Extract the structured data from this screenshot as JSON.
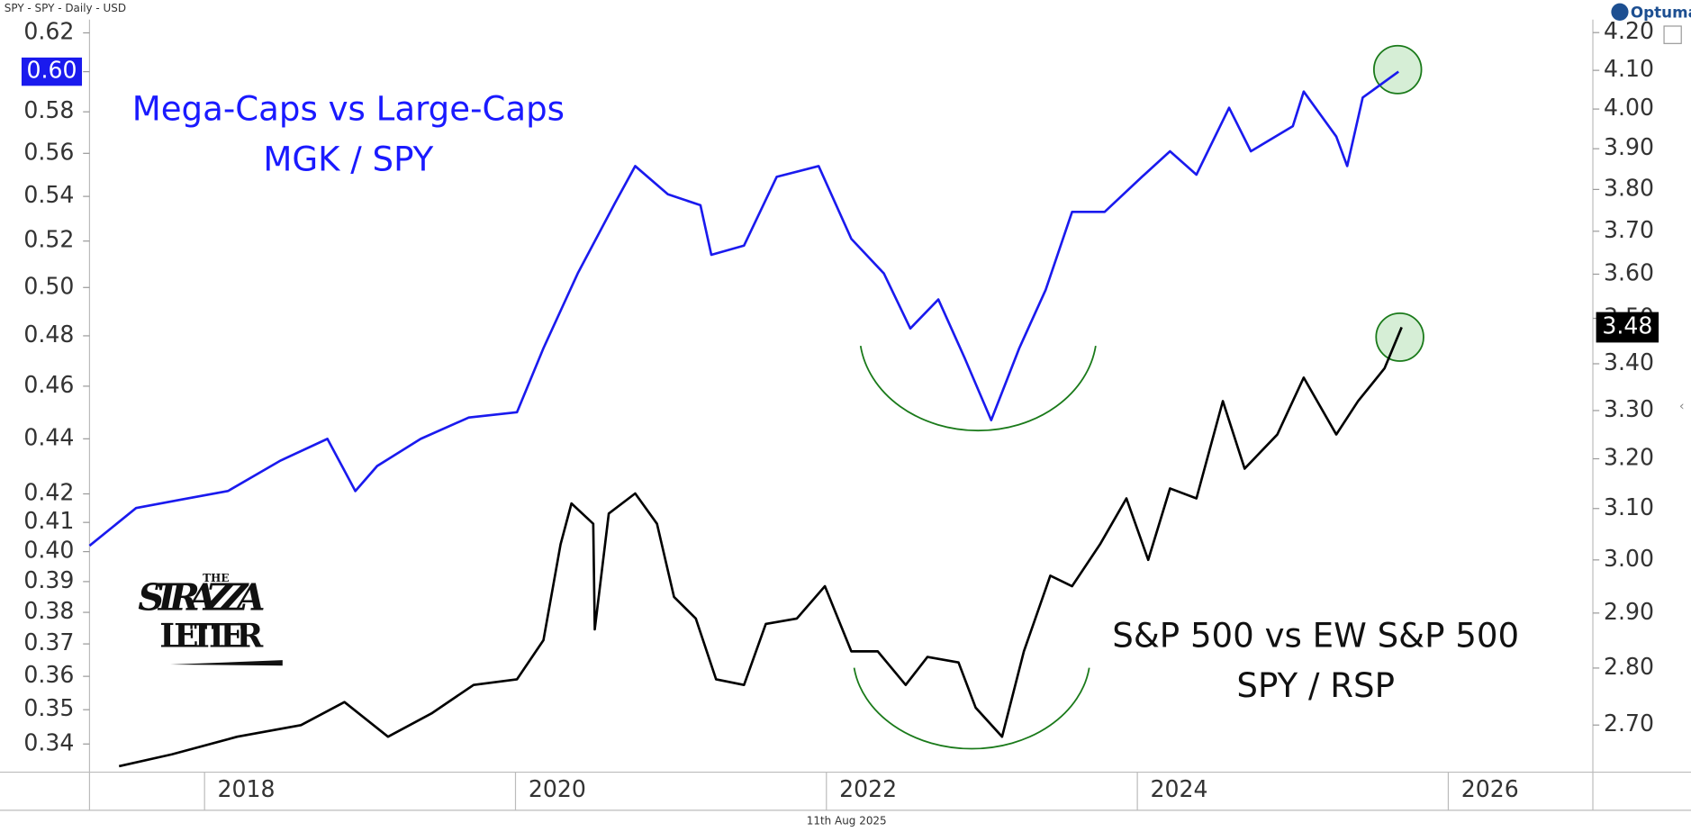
{
  "header": "SPY - SPY - Daily - USD",
  "brand": "Optuma",
  "footer": "11th Aug 2025",
  "watermark": {
    "top": "THE",
    "line1": "STRAZZA",
    "line2": "LETTER"
  },
  "chart_data": {
    "type": "line",
    "log_scale": true,
    "grid": false,
    "annotations": [
      {
        "text": "Mega-Caps vs Large-Caps",
        "color": "#1a1aff"
      },
      {
        "text": "MGK / SPY",
        "color": "#1a1aff"
      },
      {
        "text": "S&P 500 vs EW S&P 500",
        "color": "#111111"
      },
      {
        "text": "SPY / RSP",
        "color": "#111111"
      }
    ],
    "xlim": [
      2017.26,
      2026.93
    ],
    "xticks": [
      2018,
      2020,
      2022,
      2024,
      2026
    ],
    "ylim": [
      0.332,
      0.627
    ],
    "yticks": [
      0.34,
      0.35,
      0.36,
      0.37,
      0.38,
      0.39,
      {
        "value": 0.4,
        "label": "0.40"
      },
      0.41,
      0.42,
      0.44,
      0.46,
      0.48,
      {
        "value": 0.5,
        "label": "0.50"
      },
      0.52,
      0.54,
      0.56,
      0.58,
      {
        "value": 0.6,
        "label": "0.60"
      },
      0.62
    ],
    "y2lim": [
      2.62,
      4.235
    ],
    "y2ticks": [
      {
        "value": 2.7,
        "label": "2.70"
      },
      {
        "value": 2.8,
        "label": "2.80"
      },
      {
        "value": 2.9,
        "label": "2.90"
      },
      {
        "value": 3.0,
        "label": "3.00"
      },
      {
        "value": 3.1,
        "label": "3.10"
      },
      {
        "value": 3.2,
        "label": "3.20"
      },
      {
        "value": 3.3,
        "label": "3.30"
      },
      {
        "value": 3.4,
        "label": "3.40"
      },
      {
        "value": 3.5,
        "label": "3.50"
      },
      {
        "value": 3.6,
        "label": "3.60"
      },
      {
        "value": 3.7,
        "label": "3.70"
      },
      {
        "value": 3.8,
        "label": "3.80"
      },
      {
        "value": 3.9,
        "label": "3.90"
      },
      {
        "value": 4.0,
        "label": "4.00"
      },
      {
        "value": 4.1,
        "label": "4.10"
      },
      {
        "value": 4.2,
        "label": "4.20"
      }
    ],
    "series": [
      {
        "name": "MGK / SPY",
        "color": "#1a1aee",
        "axis": "y",
        "last_label": "0.60",
        "x": [
          2017.26,
          2017.56,
          2017.85,
          2018.15,
          2018.49,
          2018.79,
          2018.97,
          2019.11,
          2019.39,
          2019.7,
          2020.01,
          2020.18,
          2020.4,
          2020.64,
          2020.77,
          2020.98,
          2021.19,
          2021.26,
          2021.47,
          2021.68,
          2021.95,
          2022.16,
          2022.37,
          2022.54,
          2022.72,
          2022.89,
          2023.06,
          2023.24,
          2023.41,
          2023.58,
          2023.79,
          2024.03,
          2024.21,
          2024.38,
          2024.59,
          2024.73,
          2025.0,
          2025.07,
          2025.28,
          2025.35,
          2025.45,
          2025.68
        ],
        "values": [
          0.402,
          0.415,
          0.418,
          0.421,
          0.432,
          0.44,
          0.421,
          0.43,
          0.44,
          0.448,
          0.45,
          0.475,
          0.506,
          0.537,
          0.554,
          0.541,
          0.536,
          0.514,
          0.518,
          0.549,
          0.554,
          0.521,
          0.506,
          0.483,
          0.495,
          0.471,
          0.447,
          0.475,
          0.499,
          0.533,
          0.533,
          0.549,
          0.561,
          0.55,
          0.582,
          0.561,
          0.573,
          0.59,
          0.568,
          0.554,
          0.587,
          0.6
        ]
      },
      {
        "name": "SPY / RSP",
        "color": "#000000",
        "axis": "y2",
        "last_label": "3.48",
        "x": [
          2017.45,
          2017.79,
          2018.21,
          2018.62,
          2018.9,
          2019.18,
          2019.46,
          2019.73,
          2020.01,
          2020.18,
          2020.29,
          2020.36,
          2020.5,
          2020.51,
          2020.6,
          2020.77,
          2020.91,
          2021.02,
          2021.16,
          2021.29,
          2021.47,
          2021.61,
          2021.81,
          2021.99,
          2022.16,
          2022.33,
          2022.51,
          2022.65,
          2022.85,
          2022.96,
          2023.13,
          2023.27,
          2023.44,
          2023.58,
          2023.76,
          2023.93,
          2024.07,
          2024.21,
          2024.38,
          2024.55,
          2024.69,
          2024.9,
          2025.07,
          2025.28,
          2025.42,
          2025.59,
          2025.7
        ],
        "values": [
          2.63,
          2.65,
          2.68,
          2.7,
          2.74,
          2.68,
          2.72,
          2.77,
          2.78,
          2.85,
          3.03,
          3.11,
          3.07,
          2.87,
          3.09,
          3.13,
          3.07,
          2.93,
          2.89,
          2.78,
          2.77,
          2.88,
          2.89,
          2.95,
          2.83,
          2.83,
          2.77,
          2.82,
          2.81,
          2.73,
          2.68,
          2.83,
          2.97,
          2.95,
          3.03,
          3.12,
          3.0,
          3.14,
          3.12,
          3.32,
          3.18,
          3.25,
          3.37,
          3.25,
          3.32,
          3.39,
          3.48
        ]
      }
    ]
  }
}
